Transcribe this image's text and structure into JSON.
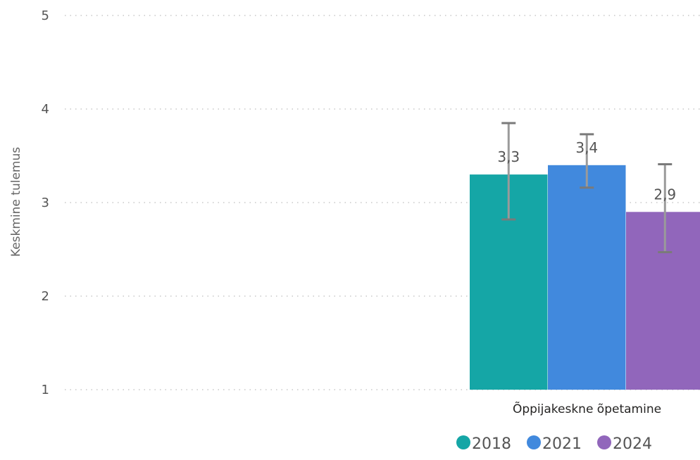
{
  "chart_data": {
    "type": "bar",
    "ylabel": "Keskmine tulemus",
    "ylim": [
      1,
      5
    ],
    "yticks": [
      "1",
      "2",
      "3",
      "4",
      "5"
    ],
    "categories": [
      "Õppijakeskne õpetamine"
    ],
    "series": [
      {
        "name": "2018",
        "color": "#15A6A6",
        "values": [
          3.3
        ],
        "labels": [
          "3,3"
        ],
        "error_low": [
          2.82
        ],
        "error_high": [
          3.85
        ]
      },
      {
        "name": "2021",
        "color": "#4189DD",
        "values": [
          3.4
        ],
        "labels": [
          "3,4"
        ],
        "error_low": [
          3.16
        ],
        "error_high": [
          3.73
        ]
      },
      {
        "name": "2024",
        "color": "#9166BB",
        "values": [
          2.9
        ],
        "labels": [
          "2,9"
        ],
        "error_low": [
          2.47
        ],
        "error_high": [
          3.41
        ]
      }
    ],
    "legend_position": "bottom-right",
    "grid": true
  }
}
